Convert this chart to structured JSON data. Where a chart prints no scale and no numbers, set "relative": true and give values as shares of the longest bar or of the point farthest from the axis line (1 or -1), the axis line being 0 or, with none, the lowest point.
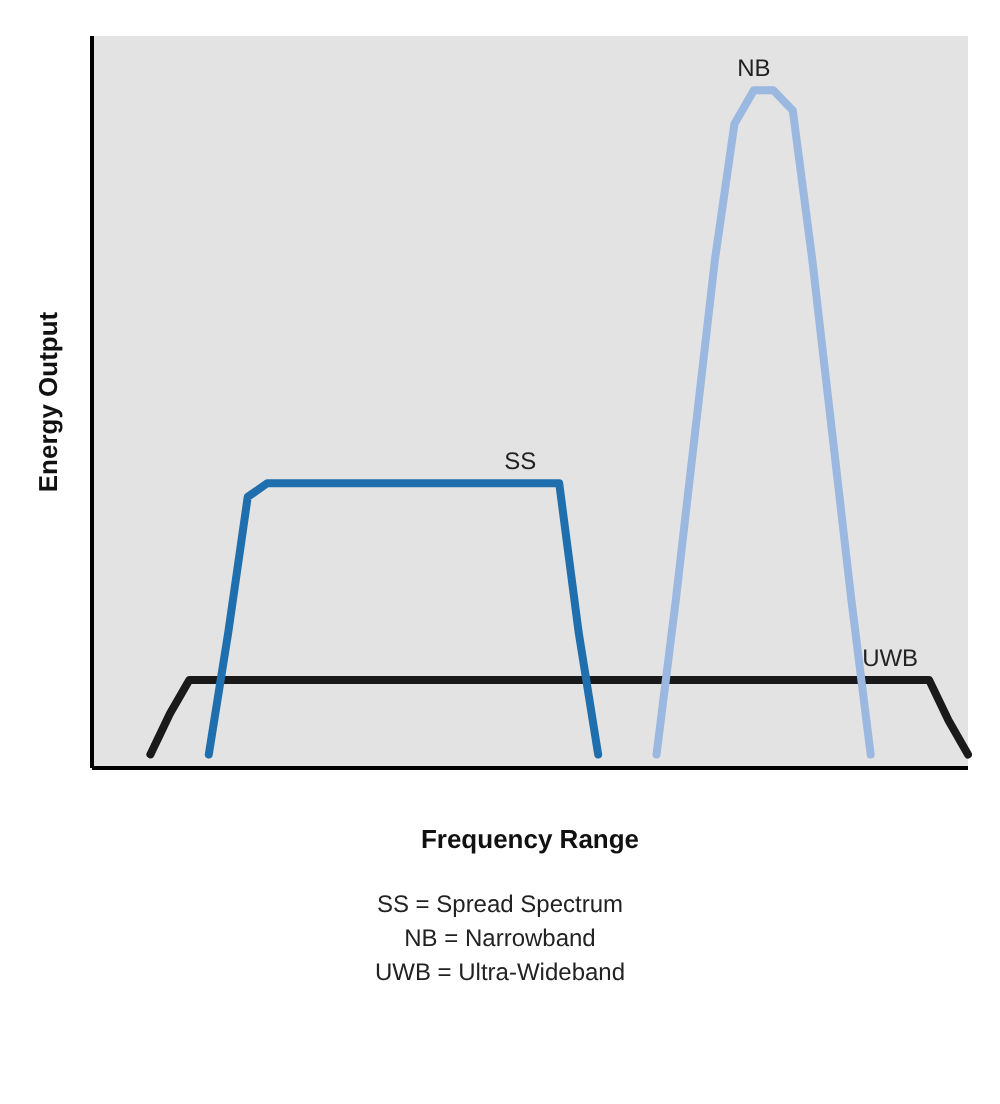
{
  "chart_data": {
    "type": "line",
    "relative": true,
    "xlabel": "Frequency Range",
    "ylabel": "Energy Output",
    "categories": [
      null,
      null,
      null,
      null,
      null,
      null,
      null,
      null,
      null,
      null,
      null,
      null,
      null,
      null,
      null,
      null,
      null,
      null,
      null,
      null,
      null,
      null,
      null,
      null,
      null,
      null,
      null,
      null,
      null,
      null,
      null,
      null,
      null,
      null,
      null,
      null,
      null,
      null,
      null,
      null,
      null,
      null,
      null,
      null,
      null,
      null
    ],
    "series": [
      {
        "name": "UWB",
        "color": "#1a1a1a",
        "values": [
          null,
          null,
          null,
          0.02,
          0.08,
          0.13,
          0.13,
          0.13,
          0.13,
          0.13,
          0.13,
          0.13,
          0.13,
          0.13,
          0.13,
          0.13,
          0.13,
          0.13,
          0.13,
          0.13,
          0.13,
          0.13,
          0.13,
          0.13,
          0.13,
          0.13,
          0.13,
          0.13,
          0.13,
          0.13,
          0.13,
          0.13,
          0.13,
          0.13,
          0.13,
          0.13,
          0.13,
          0.13,
          0.13,
          0.13,
          0.13,
          0.13,
          0.13,
          0.13,
          0.07,
          0.02
        ]
      },
      {
        "name": "SS",
        "color": "#1f6fae",
        "values": [
          null,
          null,
          null,
          null,
          null,
          null,
          0.02,
          0.2,
          0.4,
          0.42,
          0.42,
          0.42,
          0.42,
          0.42,
          0.42,
          0.42,
          0.42,
          0.42,
          0.42,
          0.42,
          0.42,
          0.42,
          0.42,
          0.42,
          0.42,
          0.2,
          0.02,
          null,
          null,
          null,
          null,
          null,
          null,
          null,
          null,
          null,
          null,
          null,
          null,
          null,
          null,
          null,
          null,
          null,
          null,
          null
        ]
      },
      {
        "name": "NB",
        "color": "#9ab8e0",
        "values": [
          null,
          null,
          null,
          null,
          null,
          null,
          null,
          null,
          null,
          null,
          null,
          null,
          null,
          null,
          null,
          null,
          null,
          null,
          null,
          null,
          null,
          null,
          null,
          null,
          null,
          null,
          null,
          null,
          null,
          0.02,
          0.25,
          0.5,
          0.75,
          0.95,
          1,
          1,
          0.97,
          0.75,
          0.5,
          0.25,
          0.02,
          null,
          null,
          null,
          null,
          null
        ]
      }
    ],
    "marker": "none",
    "grid": false,
    "legend": false,
    "annotations": [
      "SS = Spread Spectrum",
      "NB = Narrowband",
      "UWB = Ultra-Wideband"
    ]
  }
}
